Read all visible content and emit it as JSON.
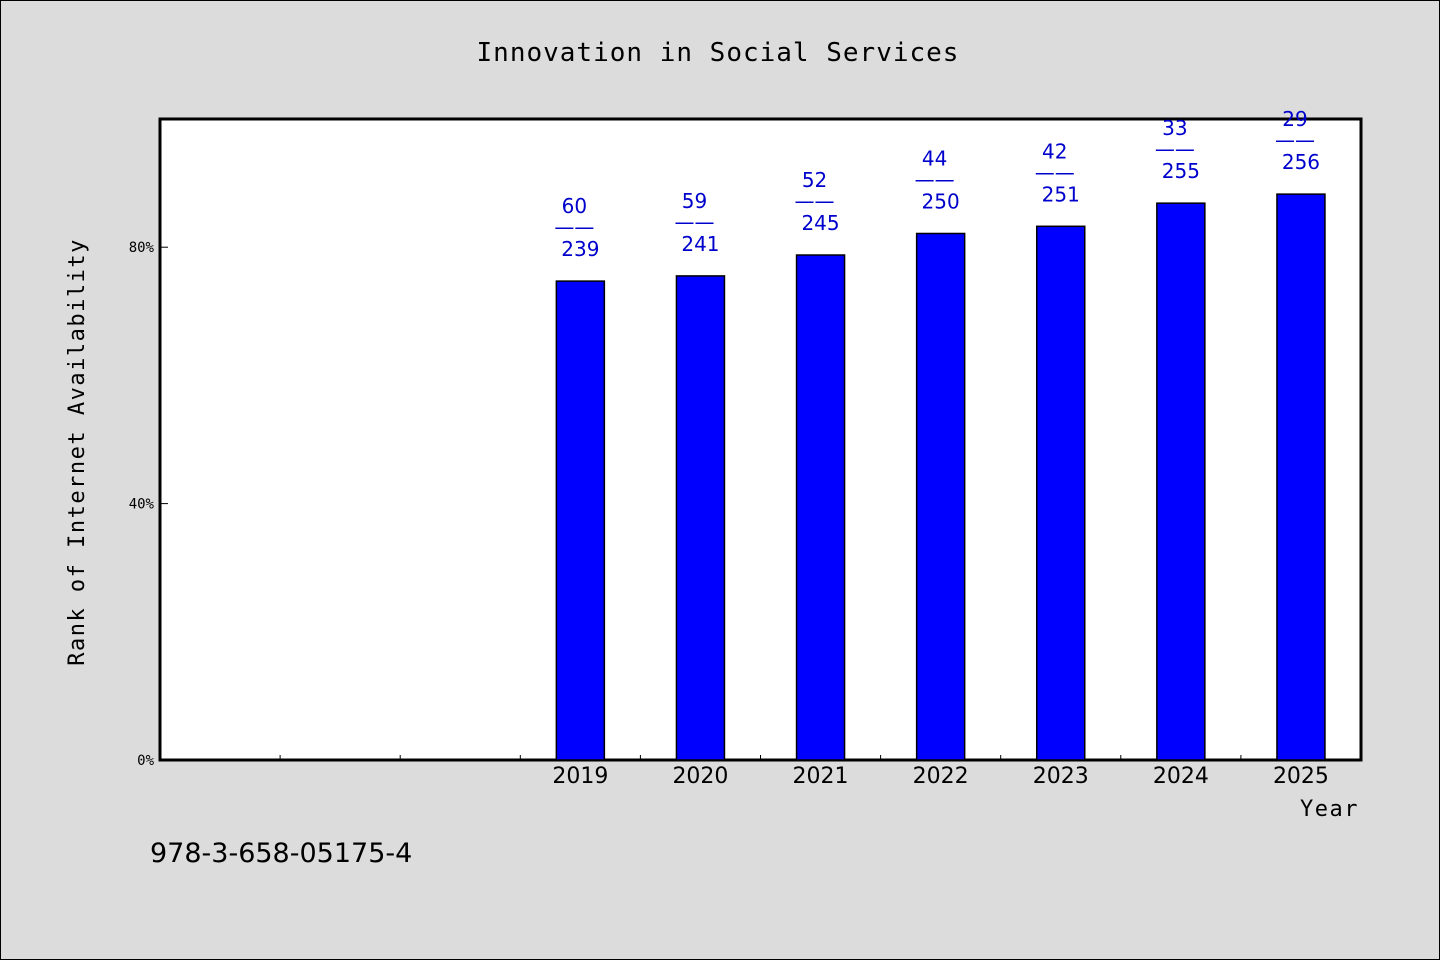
{
  "chart_data": {
    "type": "bar",
    "title": "Innovation in Social Services",
    "xlabel": "Year",
    "ylabel": "Rank of Internet Availability",
    "x_slots": 10,
    "categories": [
      "2019",
      "2020",
      "2021",
      "2022",
      "2023",
      "2024",
      "2025"
    ],
    "first_category_slot": 3,
    "values": [
      0.7471,
      0.7552,
      0.7878,
      0.8214,
      0.8326,
      0.8687,
      0.8828
    ],
    "data_labels": [
      {
        "top": "60",
        "sep": "——",
        "bottom": "239"
      },
      {
        "top": "59",
        "sep": "——",
        "bottom": "241"
      },
      {
        "top": "52",
        "sep": "——",
        "bottom": "245"
      },
      {
        "top": "44",
        "sep": "——",
        "bottom": "250"
      },
      {
        "top": "42",
        "sep": "——",
        "bottom": "251"
      },
      {
        "top": "33",
        "sep": "——",
        "bottom": "255"
      },
      {
        "top": "29",
        "sep": "——",
        "bottom": "256"
      }
    ],
    "y_ticks": [
      {
        "value": 0,
        "label": "0%"
      },
      {
        "value": 0.4,
        "label": "40%"
      },
      {
        "value": 0.8,
        "label": "80%"
      }
    ],
    "ylim": [
      0,
      1.0
    ],
    "grid": false,
    "legend": "none",
    "colors": {
      "bar": "#0000ff",
      "bar_edge": "#000000",
      "label": "#0000cc",
      "plot_bg": "#ffffff",
      "page_bg": "#dcdcdc"
    }
  },
  "footer": {
    "isbn": "978-3-658-05175-4"
  }
}
